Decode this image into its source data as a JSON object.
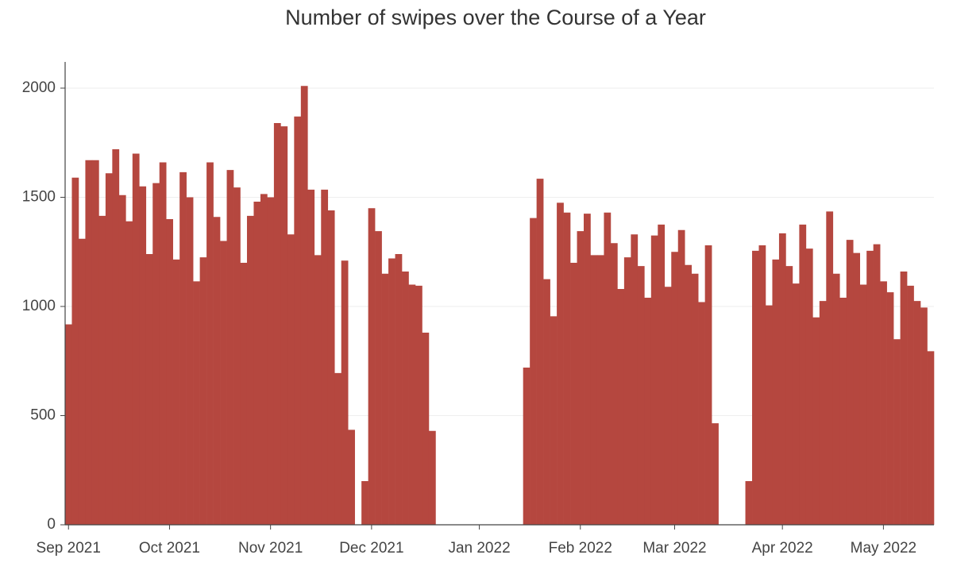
{
  "chart_data": {
    "type": "bar",
    "title": "Number of swipes over the Course of a Year",
    "color": "#b5473f",
    "grid": true,
    "ylim": [
      0,
      2120
    ],
    "yticks": [
      0,
      500,
      1000,
      1500,
      2000
    ],
    "categories": [
      "Sep 2021",
      null,
      null,
      null,
      null,
      null,
      null,
      null,
      null,
      null,
      null,
      null,
      null,
      null,
      null,
      "Oct 2021",
      null,
      null,
      null,
      null,
      null,
      null,
      null,
      null,
      null,
      null,
      null,
      null,
      null,
      null,
      "Nov 2021",
      null,
      null,
      null,
      null,
      null,
      null,
      null,
      null,
      null,
      null,
      null,
      null,
      null,
      null,
      "Dec 2021",
      null,
      null,
      null,
      null,
      null,
      null,
      null,
      null,
      null,
      null,
      null,
      null,
      null,
      null,
      null,
      "Jan 2022",
      null,
      null,
      null,
      null,
      null,
      null,
      null,
      null,
      null,
      null,
      null,
      null,
      null,
      null,
      "Feb 2022",
      null,
      null,
      null,
      null,
      null,
      null,
      null,
      null,
      null,
      null,
      null,
      null,
      null,
      "Mar 2022",
      null,
      null,
      null,
      null,
      null,
      null,
      null,
      null,
      null,
      null,
      null,
      null,
      null,
      null,
      null,
      "Apr 2022",
      null,
      null,
      null,
      null,
      null,
      null,
      null,
      null,
      null,
      null,
      null,
      null,
      null,
      null,
      "May 2022",
      null,
      null,
      null,
      null,
      null,
      null,
      null
    ],
    "values": [
      918,
      1590,
      1310,
      1670,
      1670,
      1415,
      1610,
      1720,
      1510,
      1390,
      1700,
      1550,
      1240,
      1565,
      1660,
      1400,
      1215,
      1615,
      1500,
      1115,
      1225,
      1660,
      1410,
      1300,
      1625,
      1545,
      1200,
      1415,
      1480,
      1515,
      1500,
      1840,
      1825,
      1330,
      1870,
      2010,
      1535,
      1235,
      1535,
      1440,
      695,
      1210,
      435,
      0,
      200,
      1450,
      1345,
      1150,
      1220,
      1240,
      1160,
      1100,
      1095,
      880,
      430,
      0,
      0,
      0,
      0,
      0,
      0,
      0,
      0,
      0,
      0,
      0,
      0,
      0,
      720,
      1405,
      1585,
      1125,
      955,
      1475,
      1430,
      1200,
      1345,
      1425,
      1235,
      1235,
      1430,
      1290,
      1080,
      1225,
      1330,
      1185,
      1040,
      1325,
      1375,
      1090,
      1250,
      1350,
      1190,
      1150,
      1020,
      1280,
      465,
      0,
      0,
      0,
      0,
      200,
      1255,
      1280,
      1005,
      1215,
      1335,
      1185,
      1105,
      1375,
      1265,
      950,
      1025,
      1435,
      1150,
      1040,
      1305,
      1245,
      1100,
      1255,
      1285,
      1115,
      1065,
      850,
      1160,
      1095,
      1025,
      995,
      795
    ]
  }
}
